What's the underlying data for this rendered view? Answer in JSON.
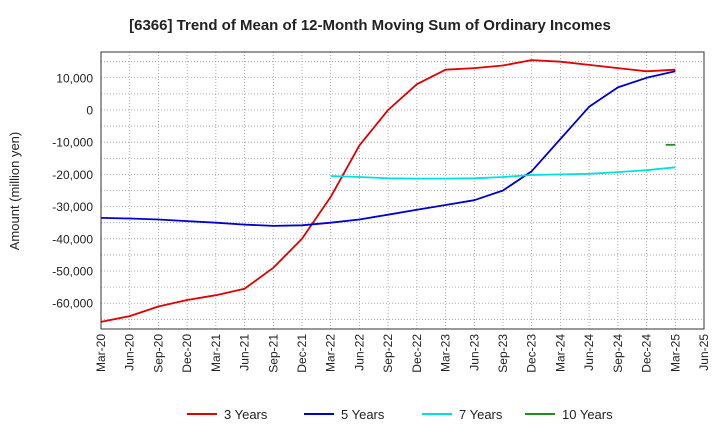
{
  "chart_data": {
    "type": "line",
    "title": "[6366]  Trend of Mean of 12-Month Moving Sum of Ordinary Incomes",
    "ylabel": "Amount (million yen)",
    "xlabel": "",
    "ylim": [
      -68000,
      18000
    ],
    "yticks": [
      10000,
      0,
      -10000,
      -20000,
      -30000,
      -40000,
      -50000,
      -60000
    ],
    "ytick_labels": [
      "10,000",
      "0",
      "-10,000",
      "-20,000",
      "-30,000",
      "-40,000",
      "-50,000",
      "-60,000"
    ],
    "x_start": "2020-03",
    "x_end": "2025-06",
    "xtick_labels": [
      "Mar-20",
      "Jun-20",
      "Sep-20",
      "Dec-20",
      "Mar-21",
      "Jun-21",
      "Sep-21",
      "Dec-21",
      "Mar-22",
      "Jun-22",
      "Sep-22",
      "Dec-22",
      "Mar-23",
      "Jun-23",
      "Sep-23",
      "Dec-23",
      "Mar-24",
      "Jun-24",
      "Sep-24",
      "Dec-24",
      "Mar-25",
      "Jun-25"
    ],
    "grid": true,
    "legend_position": "bottom",
    "series": [
      {
        "name": "3 Years",
        "color": "#e00000",
        "points": [
          [
            "2020-03",
            -65800
          ],
          [
            "2020-06",
            -64000
          ],
          [
            "2020-09",
            -61000
          ],
          [
            "2020-12",
            -59000
          ],
          [
            "2021-03",
            -57500
          ],
          [
            "2021-06",
            -55500
          ],
          [
            "2021-09",
            -49000
          ],
          [
            "2021-12",
            -40000
          ],
          [
            "2022-03",
            -27000
          ],
          [
            "2022-06",
            -11000
          ],
          [
            "2022-09",
            0
          ],
          [
            "2022-12",
            8000
          ],
          [
            "2023-03",
            12500
          ],
          [
            "2023-06",
            13000
          ],
          [
            "2023-09",
            13800
          ],
          [
            "2023-12",
            15500
          ],
          [
            "2024-03",
            15000
          ],
          [
            "2024-06",
            14000
          ],
          [
            "2024-09",
            13000
          ],
          [
            "2024-12",
            12000
          ],
          [
            "2025-03",
            12500
          ]
        ]
      },
      {
        "name": "5 Years",
        "color": "#0000cc",
        "points": [
          [
            "2020-03",
            -33500
          ],
          [
            "2020-06",
            -33700
          ],
          [
            "2020-09",
            -34000
          ],
          [
            "2020-12",
            -34500
          ],
          [
            "2021-03",
            -35000
          ],
          [
            "2021-06",
            -35600
          ],
          [
            "2021-09",
            -36000
          ],
          [
            "2021-12",
            -35800
          ],
          [
            "2022-03",
            -35000
          ],
          [
            "2022-06",
            -34000
          ],
          [
            "2022-09",
            -32500
          ],
          [
            "2022-12",
            -31000
          ],
          [
            "2023-03",
            -29500
          ],
          [
            "2023-06",
            -28000
          ],
          [
            "2023-09",
            -25000
          ],
          [
            "2023-12",
            -19000
          ],
          [
            "2024-03",
            -9000
          ],
          [
            "2024-06",
            1000
          ],
          [
            "2024-09",
            7000
          ],
          [
            "2024-12",
            10000
          ],
          [
            "2025-03",
            12000
          ]
        ]
      },
      {
        "name": "7 Years",
        "color": "#00e0e0",
        "points": [
          [
            "2022-03",
            -20500
          ],
          [
            "2022-06",
            -20800
          ],
          [
            "2022-09",
            -21200
          ],
          [
            "2022-12",
            -21300
          ],
          [
            "2023-03",
            -21300
          ],
          [
            "2023-06",
            -21200
          ],
          [
            "2023-09",
            -20800
          ],
          [
            "2023-12",
            -20200
          ],
          [
            "2024-03",
            -20000
          ],
          [
            "2024-06",
            -19800
          ],
          [
            "2024-09",
            -19300
          ],
          [
            "2024-12",
            -18700
          ],
          [
            "2025-03",
            -17800
          ]
        ]
      },
      {
        "name": "10 Years",
        "color": "#228b22",
        "points": [
          [
            "2025-02",
            -10800
          ],
          [
            "2025-03",
            -10800
          ]
        ]
      }
    ]
  }
}
